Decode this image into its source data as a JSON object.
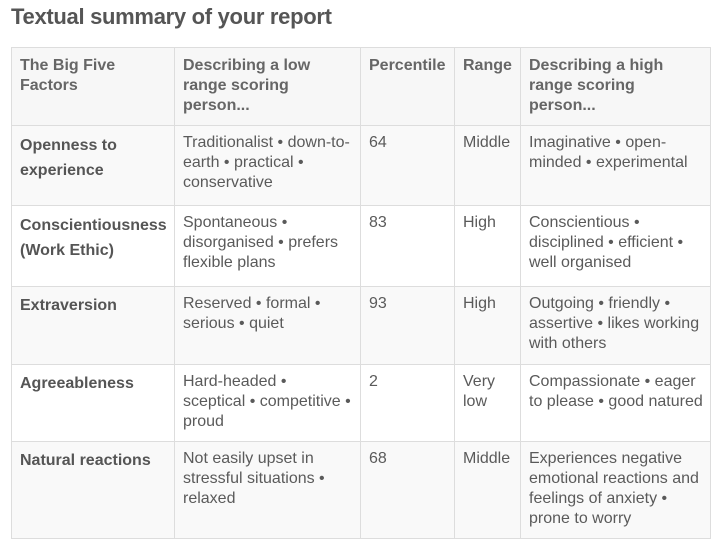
{
  "title": "Textual summary of your report",
  "table": {
    "headers": {
      "factor": "The Big Five Factors",
      "low": "Describing a low range scoring person...",
      "percentile": "Percentile",
      "range": "Range",
      "high": "Describing a high range scoring person..."
    },
    "rows": [
      {
        "factor": "Openness to experience",
        "low": "Traditionalist • down-to-earth • practical • conservative",
        "percentile": "64",
        "range": "Middle",
        "high": "Imaginative • open-minded • experimental"
      },
      {
        "factor": "Conscientiousness (Work Ethic)",
        "low": "Spontaneous • disorganised • prefers flexible plans",
        "percentile": "83",
        "range": "High",
        "high": "Conscientious • disciplined • efficient • well organised"
      },
      {
        "factor": "Extraversion",
        "low": "Reserved • formal • serious • quiet",
        "percentile": "93",
        "range": "High",
        "high": "Outgoing • friendly • assertive • likes working with others"
      },
      {
        "factor": "Agreeableness",
        "low": "Hard-headed • sceptical • competitive • proud",
        "percentile": "2",
        "range": "Very low",
        "high": "Compassionate • eager to please • good natured"
      },
      {
        "factor": "Natural reactions",
        "low": "Not easily upset in stressful situations • relaxed",
        "percentile": "68",
        "range": "Middle",
        "high": "Experiences negative emotional reactions and feelings of anxiety • prone to worry"
      }
    ]
  }
}
